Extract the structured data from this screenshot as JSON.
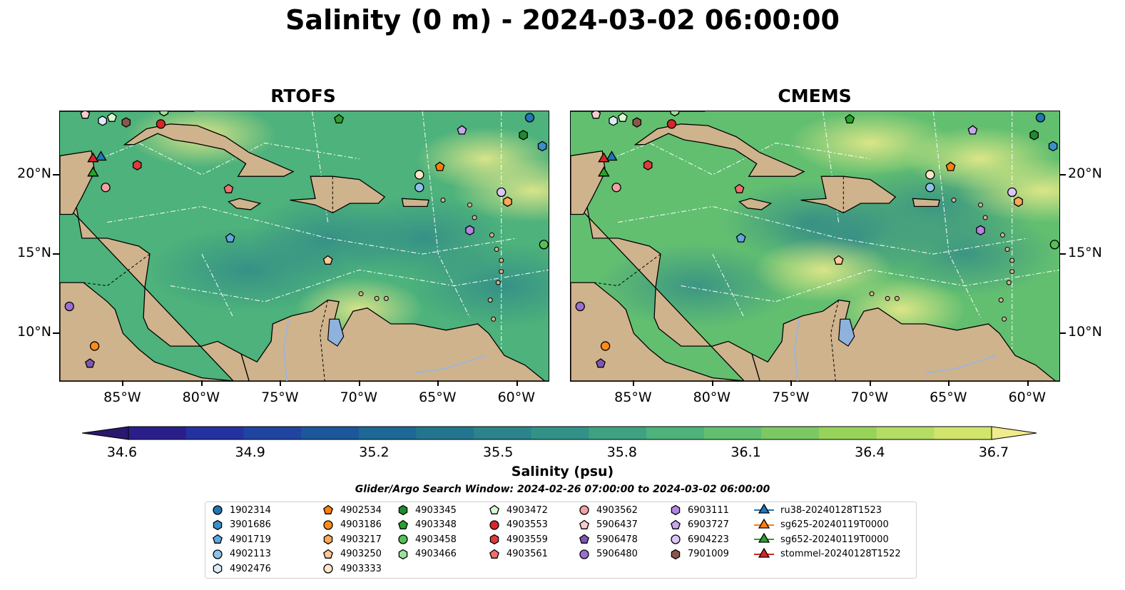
{
  "title": "Salinity (0 m) - 2024-03-02 06:00:00",
  "panels": [
    {
      "title": "RTOFS"
    },
    {
      "title": "CMEMS"
    }
  ],
  "axes": {
    "lon_ticks": [
      "85°W",
      "80°W",
      "75°W",
      "70°W",
      "65°W",
      "60°W"
    ],
    "lat_ticks": [
      "20°N",
      "15°N",
      "10°N"
    ]
  },
  "colorbar": {
    "label": "Salinity (psu)",
    "ticks": [
      "34.6",
      "34.9",
      "35.2",
      "35.5",
      "35.8",
      "36.1",
      "36.4",
      "36.7"
    ],
    "colors": [
      "#2a186c",
      "#2a1f8a",
      "#2432a0",
      "#1f45a0",
      "#1b579a",
      "#1d6894",
      "#23758f",
      "#2b838b",
      "#339287",
      "#3ea282",
      "#4db27b",
      "#62bf70",
      "#7cc963",
      "#97d35a",
      "#b5dc63",
      "#d2e46c",
      "#f0ec8b"
    ],
    "extend": "both"
  },
  "search_window": "Glider/Argo Search Window: 2024-02-26 07:00:00 to 2024-03-02 06:00:00",
  "chart_data": {
    "type": "heatmap",
    "variable": "Salinity (psu)",
    "depth": "0 m",
    "time": "2024-03-02 06:00:00",
    "range": [
      34.6,
      36.7
    ],
    "lon_range": [
      -89,
      -58
    ],
    "lat_range": [
      7,
      24
    ],
    "panels": [
      "RTOFS",
      "CMEMS"
    ],
    "markers": [
      {
        "id": "1902314",
        "shape": "circle",
        "color": "#1f77b4",
        "lon": -59.2,
        "lat": 23.6
      },
      {
        "id": "3901686",
        "shape": "hexagon",
        "color": "#3c8fc7",
        "lon": -58.4,
        "lat": 21.8
      },
      {
        "id": "4901719",
        "shape": "pentagon",
        "color": "#5fa8e0",
        "lon": -78.2,
        "lat": 16.0
      },
      {
        "id": "4902113",
        "shape": "circle",
        "color": "#8fc2ea",
        "lon": -66.2,
        "lat": 19.2
      },
      {
        "id": "4902476",
        "shape": "hexagon",
        "color": "#dbecf8",
        "lon": -86.3,
        "lat": 23.4
      },
      {
        "id": "4902534",
        "shape": "pentagon",
        "color": "#ff7f0e",
        "lon": -64.9,
        "lat": 20.5
      },
      {
        "id": "4903186",
        "shape": "circle",
        "color": "#ff8c1a",
        "lon": -86.8,
        "lat": 9.2
      },
      {
        "id": "4903217",
        "shape": "hexagon",
        "color": "#ffa855",
        "lon": -60.6,
        "lat": 18.3
      },
      {
        "id": "4903250",
        "shape": "pentagon",
        "color": "#ffc896",
        "lon": -72.0,
        "lat": 14.6
      },
      {
        "id": "4903333",
        "shape": "circle",
        "color": "#ffe4c6",
        "lon": -66.2,
        "lat": 20.0
      },
      {
        "id": "4903345",
        "shape": "hexagon",
        "color": "#1f8a2e",
        "lon": -59.6,
        "lat": 22.5
      },
      {
        "id": "4903348",
        "shape": "pentagon",
        "color": "#2ca02c",
        "lon": -71.3,
        "lat": 23.5
      },
      {
        "id": "4903458",
        "shape": "circle",
        "color": "#55c155",
        "lon": -58.3,
        "lat": 15.6
      },
      {
        "id": "4903466",
        "shape": "hexagon",
        "color": "#9be29b",
        "lon": -82.4,
        "lat": 24.0
      },
      {
        "id": "4903472",
        "shape": "pentagon",
        "color": "#d8f8d4",
        "lon": -85.7,
        "lat": 23.6
      },
      {
        "id": "4903553",
        "shape": "circle",
        "color": "#d62728",
        "lon": -82.6,
        "lat": 23.2
      },
      {
        "id": "4903559",
        "shape": "hexagon",
        "color": "#e03a3a",
        "lon": -84.1,
        "lat": 20.6
      },
      {
        "id": "4903561",
        "shape": "pentagon",
        "color": "#f07070",
        "lon": -78.3,
        "lat": 19.1
      },
      {
        "id": "4903562",
        "shape": "circle",
        "color": "#f4a1a1",
        "lon": -86.1,
        "lat": 19.2
      },
      {
        "id": "5906437",
        "shape": "pentagon",
        "color": "#f8cccc",
        "lon": -87.4,
        "lat": 23.8
      },
      {
        "id": "5906478",
        "shape": "pentagon",
        "color": "#7e57b5",
        "lon": -87.1,
        "lat": 8.1
      },
      {
        "id": "5906480",
        "shape": "circle",
        "color": "#9b6fd0",
        "lon": -88.4,
        "lat": 11.7
      },
      {
        "id": "6903111",
        "shape": "hexagon",
        "color": "#b484e0",
        "lon": -63.0,
        "lat": 16.5
      },
      {
        "id": "6903727",
        "shape": "pentagon",
        "color": "#c9a6ee",
        "lon": -63.5,
        "lat": 22.8
      },
      {
        "id": "6904223",
        "shape": "circle",
        "color": "#dcc6f7",
        "lon": -61.0,
        "lat": 18.9
      },
      {
        "id": "7901009",
        "shape": "hexagon",
        "color": "#8c564b",
        "lon": -84.8,
        "lat": 23.3
      },
      {
        "id": "ru38-20240128T1523",
        "shape": "triangle",
        "color": "#1f77b4",
        "lon": -86.4,
        "lat": 21.1
      },
      {
        "id": "sg625-20240119T0000",
        "shape": "triangle",
        "color": "#ff7f0e",
        "lon": -86.9,
        "lat": 20.1
      },
      {
        "id": "sg652-20240119T0000",
        "shape": "triangle",
        "color": "#2ca02c",
        "lon": -86.9,
        "lat": 20.1
      },
      {
        "id": "stommel-20240128T1522",
        "shape": "triangle",
        "color": "#d62728",
        "lon": -86.9,
        "lat": 21.0
      }
    ]
  },
  "legend": [
    [
      "1902314",
      "3901686",
      "4901719",
      "4902113",
      "4902476"
    ],
    [
      "4902534",
      "4903186",
      "4903217",
      "4903250",
      "4903333"
    ],
    [
      "4903345",
      "4903348",
      "4903458",
      "4903466"
    ],
    [
      "4903472",
      "4903553",
      "4903559",
      "4903561"
    ],
    [
      "4903562",
      "5906437",
      "5906478",
      "5906480"
    ],
    [
      "6903111",
      "6903727",
      "6904223",
      "7901009"
    ],
    [
      "ru38-20240128T1523",
      "sg625-20240119T0000",
      "sg652-20240119T0000",
      "stommel-20240128T1522"
    ]
  ]
}
